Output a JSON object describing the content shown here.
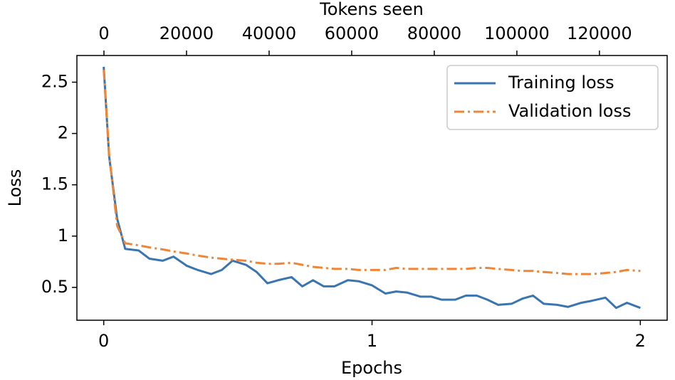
{
  "chart_data": {
    "type": "line",
    "xlabel": "Epochs",
    "ylabel": "Loss",
    "x2label": "Tokens seen",
    "x": [
      0,
      0.02,
      0.05,
      0.08,
      0.13,
      0.17,
      0.22,
      0.26,
      0.31,
      0.35,
      0.4,
      0.44,
      0.48,
      0.53,
      0.57,
      0.61,
      0.65,
      0.7,
      0.74,
      0.78,
      0.82,
      0.86,
      0.91,
      0.95,
      1.0,
      1.05,
      1.09,
      1.13,
      1.18,
      1.22,
      1.26,
      1.31,
      1.35,
      1.39,
      1.43,
      1.47,
      1.52,
      1.56,
      1.6,
      1.64,
      1.69,
      1.73,
      1.78,
      1.82,
      1.87,
      1.91,
      1.95,
      2.0
    ],
    "series": [
      {
        "name": "Training loss",
        "color": "#3a75b0",
        "dash": "solid",
        "values": [
          2.65,
          1.78,
          1.17,
          0.875,
          0.86,
          0.78,
          0.76,
          0.8,
          0.71,
          0.67,
          0.63,
          0.67,
          0.76,
          0.72,
          0.65,
          0.54,
          0.57,
          0.6,
          0.51,
          0.57,
          0.51,
          0.51,
          0.57,
          0.56,
          0.52,
          0.44,
          0.46,
          0.45,
          0.41,
          0.41,
          0.38,
          0.38,
          0.42,
          0.42,
          0.38,
          0.33,
          0.34,
          0.39,
          0.42,
          0.34,
          0.33,
          0.31,
          0.35,
          0.37,
          0.4,
          0.3,
          0.35,
          0.3
        ]
      },
      {
        "name": "Validation loss",
        "color": "#ef8536",
        "dash": "dashdot",
        "values": [
          2.62,
          1.8,
          1.1,
          0.93,
          0.91,
          0.89,
          0.87,
          0.85,
          0.83,
          0.81,
          0.79,
          0.78,
          0.77,
          0.76,
          0.74,
          0.73,
          0.73,
          0.74,
          0.72,
          0.7,
          0.69,
          0.68,
          0.68,
          0.67,
          0.67,
          0.67,
          0.69,
          0.68,
          0.68,
          0.68,
          0.68,
          0.68,
          0.68,
          0.69,
          0.69,
          0.68,
          0.67,
          0.66,
          0.66,
          0.65,
          0.64,
          0.63,
          0.63,
          0.63,
          0.64,
          0.65,
          0.67,
          0.66
        ]
      }
    ],
    "xlim": [
      -0.1,
      2.1
    ],
    "xticks": [
      0,
      1,
      2
    ],
    "ylim": [
      0.18,
      2.76
    ],
    "yticks": [
      0.5,
      1.0,
      1.5,
      2.0,
      2.5
    ],
    "x2lim": [
      -6550,
      136400
    ],
    "x2ticks": [
      0,
      20000,
      40000,
      60000,
      80000,
      100000,
      120000
    ],
    "grid": false,
    "legend": "upper right"
  }
}
